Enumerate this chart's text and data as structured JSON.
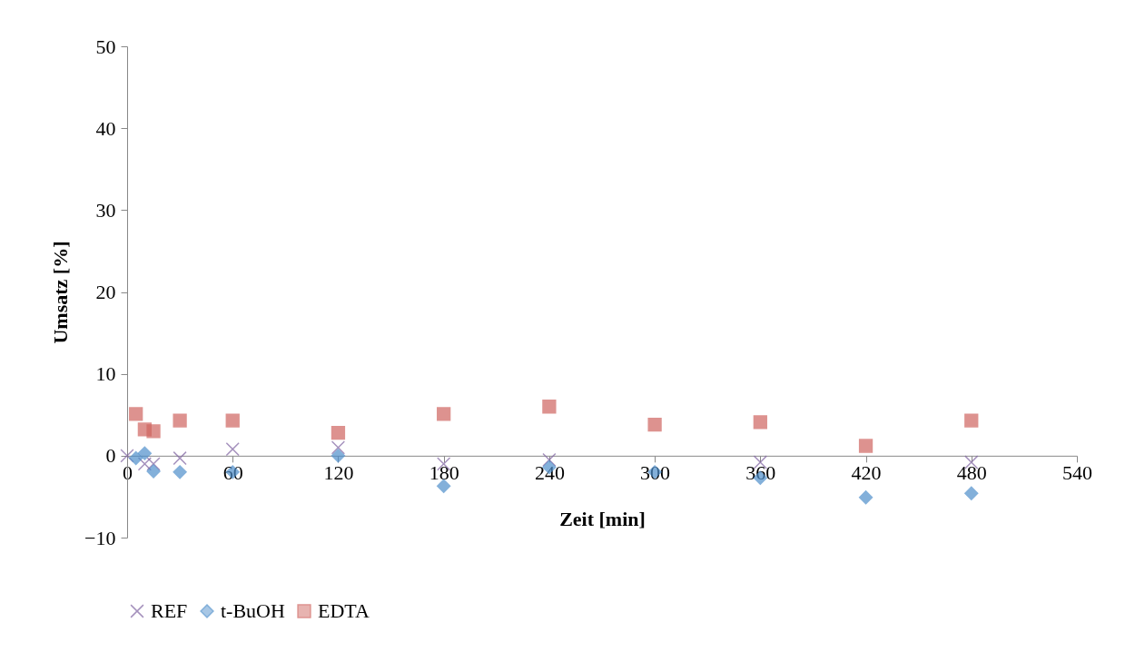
{
  "chart_data": {
    "type": "scatter",
    "xlabel": "Zeit [min]",
    "ylabel": "Umsatz [%]",
    "xlim": [
      0,
      540
    ],
    "xticks": [
      0,
      60,
      120,
      180,
      240,
      300,
      360,
      420,
      480,
      540
    ],
    "ylim": [
      -10,
      50
    ],
    "yticks": [
      -10,
      0,
      10,
      20,
      30,
      40,
      50
    ],
    "grid": false,
    "legend": "bottom",
    "series": [
      {
        "name": "REF",
        "color": "#8064a2",
        "marker": "cross",
        "x": [
          0,
          10,
          15,
          30,
          60,
          120,
          180,
          240,
          360,
          480
        ],
        "values": [
          0,
          -1,
          -1,
          -0.3,
          0.8,
          1,
          -1,
          -0.5,
          -0.8,
          -0.8
        ]
      },
      {
        "name": "t-BuOH",
        "color": "#4f8fcb",
        "marker": "diamond",
        "x": [
          5,
          10,
          15,
          30,
          60,
          120,
          180,
          240,
          300,
          360,
          420,
          480
        ],
        "values": [
          -0.3,
          0.3,
          -1.9,
          -2,
          -2,
          0,
          -3.7,
          -1.4,
          -2,
          -2.7,
          -5.1,
          -4.6
        ]
      },
      {
        "name": "EDTA",
        "color": "#cf6560",
        "marker": "square",
        "x": [
          5,
          10,
          15,
          30,
          60,
          120,
          180,
          240,
          300,
          360,
          420,
          480
        ],
        "values": [
          5.1,
          3.2,
          3,
          4.3,
          4.3,
          2.8,
          5.1,
          6,
          3.8,
          4.1,
          1.2,
          4.3
        ]
      }
    ]
  }
}
